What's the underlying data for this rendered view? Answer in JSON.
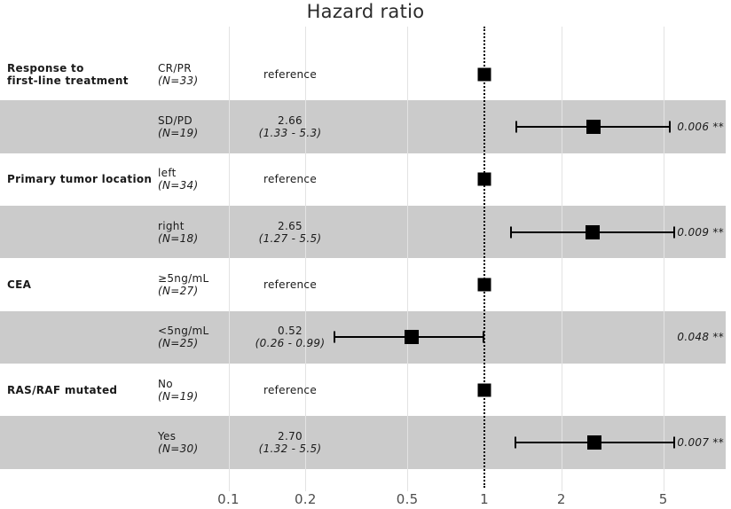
{
  "title": "Hazard ratio",
  "axis": {
    "tick_labels": [
      "0.1",
      "0.2",
      "0.5",
      "1",
      "2",
      "5"
    ],
    "tick_values": [
      0.1,
      0.2,
      0.5,
      1,
      2,
      5
    ],
    "reference_value": 1,
    "scale": "log10"
  },
  "colors": {
    "band": "#cbcbcb",
    "gridline": "#e3e3e3",
    "marker": "#000000",
    "reference_line": "#000000",
    "axis_text": "#4d4d4d",
    "text": "#1a1a1a"
  },
  "rows": [
    {
      "group_lines": [
        "Response to",
        "first-line treatment"
      ],
      "level": "CR/PR",
      "n": "(N=33)",
      "estimate_label": "reference",
      "value": 1,
      "is_reference": true,
      "shaded": false,
      "p": ""
    },
    {
      "group_lines": [],
      "level": "SD/PD",
      "n": "(N=19)",
      "estimate_label": "2.66",
      "ci_label": "(1.33 - 5.3)",
      "value": 2.66,
      "ci_low": 1.33,
      "ci_high": 5.3,
      "is_reference": false,
      "shaded": true,
      "p": "0.006 **"
    },
    {
      "group_lines": [
        "Primary tumor location"
      ],
      "level": "left",
      "n": "(N=34)",
      "estimate_label": "reference",
      "value": 1,
      "is_reference": true,
      "shaded": false,
      "p": ""
    },
    {
      "group_lines": [],
      "level": "right",
      "n": "(N=18)",
      "estimate_label": "2.65",
      "ci_label": "(1.27 - 5.5)",
      "value": 2.65,
      "ci_low": 1.27,
      "ci_high": 5.5,
      "is_reference": false,
      "shaded": true,
      "p": "0.009 **"
    },
    {
      "group_lines": [
        "CEA"
      ],
      "level": "≥5ng/mL",
      "n": "(N=27)",
      "estimate_label": "reference",
      "value": 1,
      "is_reference": true,
      "shaded": false,
      "p": ""
    },
    {
      "group_lines": [],
      "level": "<5ng/mL",
      "n": "(N=25)",
      "estimate_label": "0.52",
      "ci_label": "(0.26 - 0.99)",
      "value": 0.52,
      "ci_low": 0.26,
      "ci_high": 0.99,
      "is_reference": false,
      "shaded": true,
      "p": "0.048 **"
    },
    {
      "group_lines": [
        "RAS/RAF mutated"
      ],
      "level": "No",
      "n": "(N=19)",
      "estimate_label": "reference",
      "value": 1,
      "is_reference": true,
      "shaded": false,
      "p": ""
    },
    {
      "group_lines": [],
      "level": "Yes",
      "n": "(N=30)",
      "estimate_label": "2.70",
      "ci_label": "(1.32 - 5.5)",
      "value": 2.7,
      "ci_low": 1.32,
      "ci_high": 5.5,
      "is_reference": false,
      "shaded": true,
      "p": "0.007 **"
    }
  ],
  "chart_data": {
    "type": "forest",
    "title": "Hazard ratio",
    "x_scale": "log10",
    "x_ticks": [
      0.1,
      0.2,
      0.5,
      1,
      2,
      5
    ],
    "reference_line": 1,
    "groups": [
      {
        "variable": "Response to first-line treatment",
        "levels": [
          {
            "level": "CR/PR",
            "n": 33,
            "hr": null,
            "note": "reference"
          },
          {
            "level": "SD/PD",
            "n": 19,
            "hr": 2.66,
            "ci": [
              1.33,
              5.3
            ],
            "p": "0.006",
            "significance": "**"
          }
        ]
      },
      {
        "variable": "Primary tumor location",
        "levels": [
          {
            "level": "left",
            "n": 34,
            "hr": null,
            "note": "reference"
          },
          {
            "level": "right",
            "n": 18,
            "hr": 2.65,
            "ci": [
              1.27,
              5.5
            ],
            "p": "0.009",
            "significance": "**"
          }
        ]
      },
      {
        "variable": "CEA",
        "levels": [
          {
            "level": "≥5ng/mL",
            "n": 27,
            "hr": null,
            "note": "reference"
          },
          {
            "level": "<5ng/mL",
            "n": 25,
            "hr": 0.52,
            "ci": [
              0.26,
              0.99
            ],
            "p": "0.048",
            "significance": "**"
          }
        ]
      },
      {
        "variable": "RAS/RAF mutated",
        "levels": [
          {
            "level": "No",
            "n": 19,
            "hr": null,
            "note": "reference"
          },
          {
            "level": "Yes",
            "n": 30,
            "hr": 2.7,
            "ci": [
              1.32,
              5.5
            ],
            "p": "0.007",
            "significance": "**"
          }
        ]
      }
    ]
  }
}
